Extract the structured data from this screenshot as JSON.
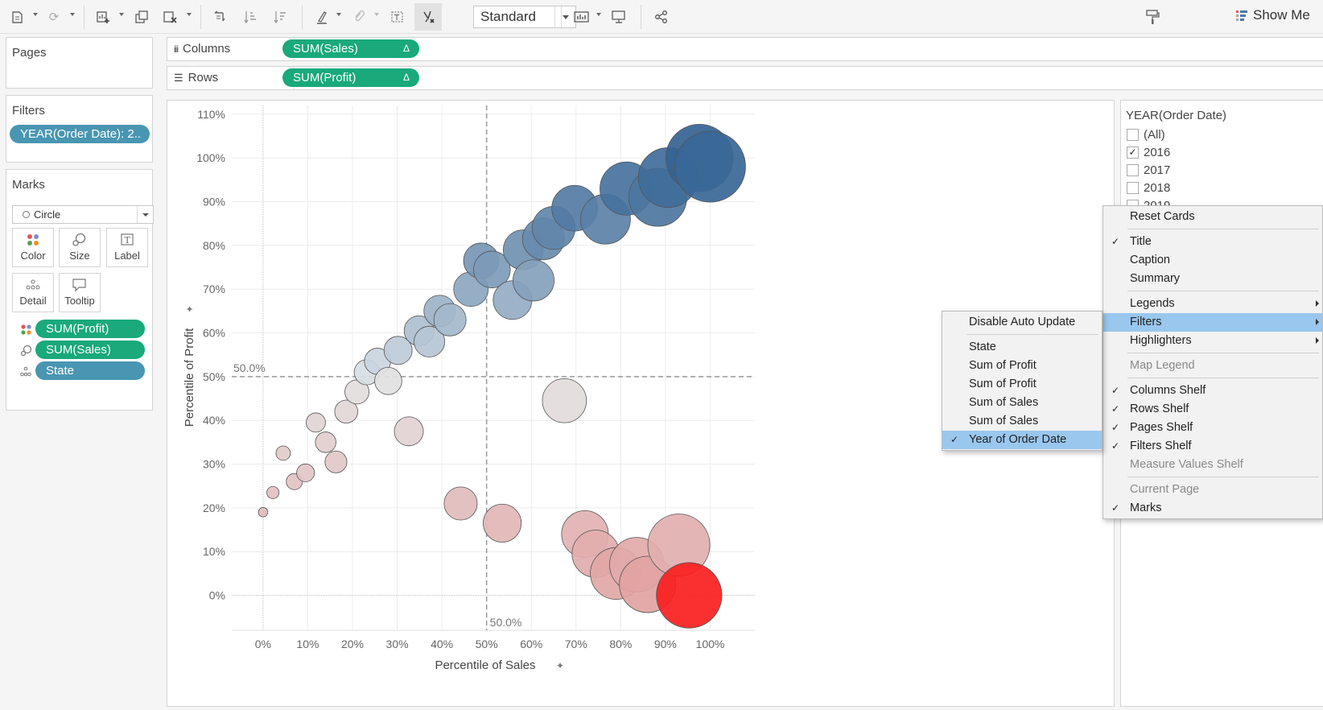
{
  "toolbar": {
    "fit": "Standard",
    "show_me": "Show Me"
  },
  "shelves": {
    "pages": "Pages",
    "filters": "Filters",
    "filter_pill": "YEAR(Order Date): 2..",
    "marks": "Marks",
    "columns": "Columns",
    "columns_pill": "SUM(Sales)",
    "rows": "Rows",
    "rows_pill": "SUM(Profit)",
    "delta": "Δ"
  },
  "marks_card": {
    "mark_type": "Circle",
    "buttons": [
      "Color",
      "Size",
      "Label",
      "Detail",
      "Tooltip"
    ],
    "fields": [
      "SUM(Profit)",
      "SUM(Sales)",
      "State"
    ]
  },
  "legend": {
    "title": "YEAR(Order Date)",
    "items": [
      {
        "label": "(All)",
        "checked": false
      },
      {
        "label": "2016",
        "checked": true
      },
      {
        "label": "2017",
        "checked": false
      },
      {
        "label": "2018",
        "checked": false
      },
      {
        "label": "2019",
        "checked": false
      }
    ]
  },
  "main_menu": {
    "items": [
      {
        "label": "Reset Cards",
        "check": false,
        "disabled": false,
        "sub": false
      },
      {
        "label": "Title",
        "check": true,
        "disabled": false,
        "sub": false
      },
      {
        "label": "Caption",
        "check": false,
        "disabled": false,
        "sub": false
      },
      {
        "label": "Summary",
        "check": false,
        "disabled": false,
        "sub": false
      },
      {
        "label": "Legends",
        "check": false,
        "disabled": false,
        "sub": true
      },
      {
        "label": "Filters",
        "check": false,
        "disabled": false,
        "sub": true,
        "selected": true
      },
      {
        "label": "Highlighters",
        "check": false,
        "disabled": false,
        "sub": true
      },
      {
        "label": "Map Legend",
        "check": false,
        "disabled": true,
        "sub": false
      },
      {
        "label": "Columns Shelf",
        "check": true,
        "disabled": false,
        "sub": false
      },
      {
        "label": "Rows Shelf",
        "check": true,
        "disabled": false,
        "sub": false
      },
      {
        "label": "Pages Shelf",
        "check": true,
        "disabled": false,
        "sub": false
      },
      {
        "label": "Filters Shelf",
        "check": true,
        "disabled": false,
        "sub": false
      },
      {
        "label": "Measure Values Shelf",
        "check": false,
        "disabled": true,
        "sub": false
      },
      {
        "label": "Current Page",
        "check": false,
        "disabled": true,
        "sub": false
      },
      {
        "label": "Marks",
        "check": true,
        "disabled": false,
        "sub": false
      }
    ]
  },
  "sub_menu": {
    "items": [
      {
        "label": "Disable Auto Update",
        "check": false
      },
      {
        "label": "State",
        "check": false
      },
      {
        "label": "Sum of Profit",
        "check": false
      },
      {
        "label": "Sum of Profit",
        "check": false
      },
      {
        "label": "Sum of Sales",
        "check": false
      },
      {
        "label": "Sum of Sales",
        "check": false
      },
      {
        "label": "Year of Order Date",
        "check": true,
        "selected": true
      }
    ]
  },
  "colors": {
    "pill_green": "#19a97b",
    "pill_blue": "#4996b2",
    "menu_highlight": "#99c7ee"
  },
  "chart_data": {
    "type": "scatter",
    "xlabel": "Percentile of Sales",
    "ylabel": "Percentile of Profit",
    "xlim": [
      -7,
      110
    ],
    "ylim": [
      -8,
      112
    ],
    "xticks": [
      0,
      10,
      20,
      30,
      40,
      50,
      60,
      70,
      80,
      90,
      100
    ],
    "yticks": [
      0,
      10,
      20,
      30,
      40,
      50,
      60,
      70,
      80,
      90,
      100,
      110
    ],
    "tick_suffix": "%",
    "reference_lines": [
      {
        "axis": "x",
        "value": 50,
        "label": "50.0%"
      },
      {
        "axis": "y",
        "value": 50,
        "label": "50.0%"
      }
    ],
    "size_range": [
      1,
      100
    ],
    "points": [
      {
        "x": 0,
        "y": 19,
        "s": 1
      },
      {
        "x": 2.2,
        "y": 23.5,
        "s": 2
      },
      {
        "x": 4.5,
        "y": 32.5,
        "s": 3
      },
      {
        "x": 7,
        "y": 26,
        "s": 4
      },
      {
        "x": 9.5,
        "y": 28,
        "s": 5
      },
      {
        "x": 11.8,
        "y": 39.5,
        "s": 6
      },
      {
        "x": 14,
        "y": 35,
        "s": 7
      },
      {
        "x": 16.3,
        "y": 30.5,
        "s": 8
      },
      {
        "x": 18.6,
        "y": 42,
        "s": 9
      },
      {
        "x": 21,
        "y": 46.5,
        "s": 10
      },
      {
        "x": 23.2,
        "y": 51,
        "s": 11
      },
      {
        "x": 25.6,
        "y": 53.5,
        "s": 12
      },
      {
        "x": 28,
        "y": 49,
        "s": 13
      },
      {
        "x": 30.2,
        "y": 56,
        "s": 14
      },
      {
        "x": 32.6,
        "y": 37.5,
        "s": 15
      },
      {
        "x": 34.9,
        "y": 60.5,
        "s": 16
      },
      {
        "x": 37.2,
        "y": 58,
        "s": 17
      },
      {
        "x": 39.5,
        "y": 65,
        "s": 18
      },
      {
        "x": 41.8,
        "y": 63,
        "s": 19
      },
      {
        "x": 44.2,
        "y": 21,
        "s": 20
      },
      {
        "x": 46.5,
        "y": 70,
        "s": 22
      },
      {
        "x": 48.8,
        "y": 76.5,
        "s": 23
      },
      {
        "x": 51.2,
        "y": 74.5,
        "s": 25
      },
      {
        "x": 53.5,
        "y": 16.5,
        "s": 27
      },
      {
        "x": 55.8,
        "y": 67.5,
        "s": 28
      },
      {
        "x": 58.2,
        "y": 79,
        "s": 30
      },
      {
        "x": 60.5,
        "y": 72,
        "s": 32
      },
      {
        "x": 62.7,
        "y": 81.5,
        "s": 33
      },
      {
        "x": 65,
        "y": 84,
        "s": 35
      },
      {
        "x": 67.4,
        "y": 44.5,
        "s": 37
      },
      {
        "x": 69.7,
        "y": 88.5,
        "s": 40
      },
      {
        "x": 72,
        "y": 14,
        "s": 42
      },
      {
        "x": 74.4,
        "y": 9.5,
        "s": 43
      },
      {
        "x": 76.6,
        "y": 86,
        "s": 48
      },
      {
        "x": 79,
        "y": 5,
        "s": 52
      },
      {
        "x": 81.3,
        "y": 93,
        "s": 55
      },
      {
        "x": 83.6,
        "y": 7,
        "s": 58
      },
      {
        "x": 86,
        "y": 2.5,
        "s": 62
      },
      {
        "x": 88.3,
        "y": 91,
        "s": 66
      },
      {
        "x": 90.6,
        "y": 95.5,
        "s": 70
      },
      {
        "x": 93,
        "y": 11.5,
        "s": 76
      },
      {
        "x": 95.3,
        "y": 0,
        "s": 85
      },
      {
        "x": 97.6,
        "y": 100,
        "s": 90
      },
      {
        "x": 100,
        "y": 98,
        "s": 100
      }
    ]
  }
}
